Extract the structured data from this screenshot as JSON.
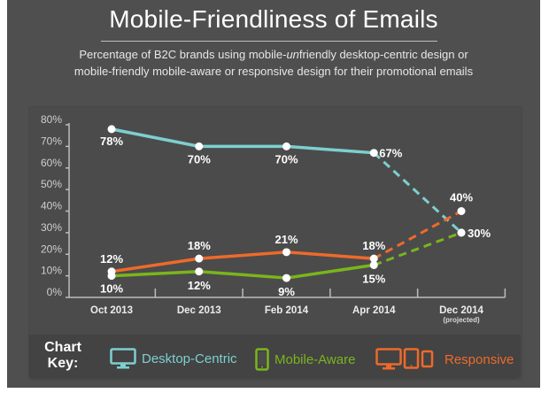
{
  "header": {
    "title": "Mobile-Friendliness of Emails",
    "subtitle_line1_pre": "Percentage of B2C brands using mobile-",
    "subtitle_line1_em": "un",
    "subtitle_line1_post": "friendly desktop-centric design or",
    "subtitle_line2": "mobile-friendly mobile-aware or responsive design for their promotional emails"
  },
  "legend": {
    "title_line1": "Chart",
    "title_line2": "Key:",
    "items": [
      {
        "label": "Desktop-Centric",
        "icon": "desktop-monitor-icon",
        "color": "#7ecfcf"
      },
      {
        "label": "Mobile-Aware",
        "icon": "smartphone-icon",
        "color": "#7ab51d"
      },
      {
        "label": "Responsive",
        "icon": "desktop-tablet-phone-icon",
        "color": "#ee6a2a"
      }
    ]
  },
  "chart_data": {
    "type": "line",
    "title": "Mobile-Friendliness of Emails",
    "xlabel": "",
    "ylabel": "",
    "categories": [
      "Oct 2013",
      "Dec 2013",
      "Feb 2014",
      "Apr 2014",
      "Dec 2014"
    ],
    "category_notes": [
      "",
      "",
      "",
      "",
      "(projected)"
    ],
    "projected_from_index": 3,
    "ylim": [
      0,
      80
    ],
    "yticks": [
      0,
      10,
      20,
      30,
      40,
      50,
      60,
      70,
      80
    ],
    "ytick_labels": [
      "0%",
      "10%",
      "20%",
      "30%",
      "40%",
      "50%",
      "60%",
      "70%",
      "80%"
    ],
    "grid": false,
    "legend_position": "bottom",
    "series": [
      {
        "name": "Desktop-Centric",
        "color": "#7ecfcf",
        "values": [
          78,
          70,
          70,
          67,
          30
        ],
        "labels": [
          "78%",
          "70%",
          "70%",
          "67%",
          "30%"
        ]
      },
      {
        "name": "Mobile-Aware",
        "color": "#7ab51d",
        "values": [
          10,
          12,
          9,
          15,
          30
        ],
        "labels": [
          "10%",
          "12%",
          "9%",
          "15%",
          ""
        ]
      },
      {
        "name": "Responsive",
        "color": "#ee6a2a",
        "values": [
          12,
          18,
          21,
          18,
          40
        ],
        "labels": [
          "12%",
          "18%",
          "21%",
          "18%",
          "40%"
        ]
      }
    ]
  }
}
